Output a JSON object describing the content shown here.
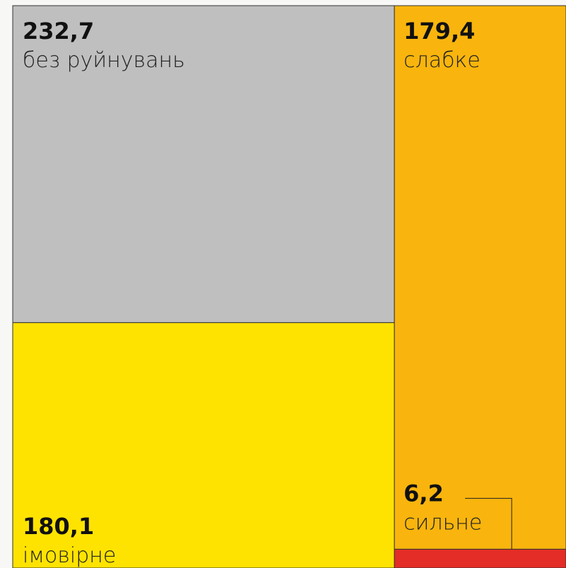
{
  "chart_data": {
    "type": "treemap",
    "categories": [
      "без руйнувань",
      "імовірне",
      "слабке",
      "сильне"
    ],
    "values": [
      232.7,
      180.1,
      179.4,
      6.2
    ],
    "value_labels": [
      "232,7",
      "180,1",
      "179,4",
      "6,2"
    ],
    "colors": [
      "#bfbfbf",
      "#ffe300",
      "#f9b50d",
      "#e32d26"
    ]
  }
}
